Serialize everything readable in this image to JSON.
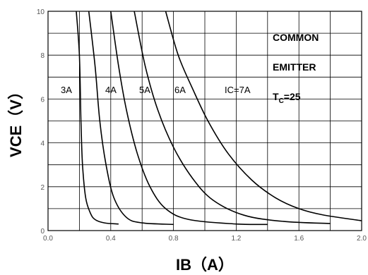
{
  "chart_data": {
    "type": "line",
    "xlabel": "IB（A）",
    "ylabel": "VCE（V）",
    "xlim": [
      0,
      2.0
    ],
    "ylim": [
      0,
      10
    ],
    "x_ticks": [
      "0.0",
      "0.4",
      "0.8",
      "1.2",
      "1.6",
      "2.0"
    ],
    "y_ticks": [
      "0",
      "2",
      "4",
      "6",
      "8",
      "10"
    ],
    "grid": true,
    "series": [
      {
        "name": "3A",
        "points": [
          [
            0.18,
            10
          ],
          [
            0.2,
            8.0
          ],
          [
            0.21,
            5.0
          ],
          [
            0.22,
            3.0
          ],
          [
            0.24,
            1.5
          ],
          [
            0.27,
            0.8
          ],
          [
            0.3,
            0.5
          ],
          [
            0.36,
            0.35
          ],
          [
            0.45,
            0.3
          ]
        ]
      },
      {
        "name": "4A",
        "points": [
          [
            0.26,
            10
          ],
          [
            0.3,
            7.5
          ],
          [
            0.33,
            5.0
          ],
          [
            0.37,
            3.0
          ],
          [
            0.42,
            1.5
          ],
          [
            0.5,
            0.6
          ],
          [
            0.6,
            0.35
          ],
          [
            0.8,
            0.28
          ]
        ]
      },
      {
        "name": "5A",
        "points": [
          [
            0.4,
            10
          ],
          [
            0.45,
            7.5
          ],
          [
            0.5,
            5.5
          ],
          [
            0.57,
            3.5
          ],
          [
            0.65,
            2.0
          ],
          [
            0.75,
            1.0
          ],
          [
            0.9,
            0.5
          ],
          [
            1.2,
            0.3
          ],
          [
            1.4,
            0.28
          ]
        ]
      },
      {
        "name": "6A",
        "points": [
          [
            0.55,
            10
          ],
          [
            0.62,
            7.5
          ],
          [
            0.7,
            5.5
          ],
          [
            0.8,
            3.8
          ],
          [
            0.92,
            2.4
          ],
          [
            1.05,
            1.4
          ],
          [
            1.25,
            0.7
          ],
          [
            1.5,
            0.42
          ],
          [
            1.8,
            0.32
          ]
        ]
      },
      {
        "name": "IC=7A",
        "points": [
          [
            0.75,
            10
          ],
          [
            0.83,
            8.0
          ],
          [
            0.92,
            6.5
          ],
          [
            1.02,
            5.0
          ],
          [
            1.15,
            3.5
          ],
          [
            1.3,
            2.3
          ],
          [
            1.45,
            1.5
          ],
          [
            1.6,
            1.0
          ],
          [
            1.75,
            0.72
          ],
          [
            2.0,
            0.45
          ]
        ]
      }
    ],
    "annotations": [
      "COMMON",
      "EMITTER"
    ],
    "temp_label": {
      "prefix": "T",
      "sub": "C",
      "suffix": "=25"
    }
  }
}
